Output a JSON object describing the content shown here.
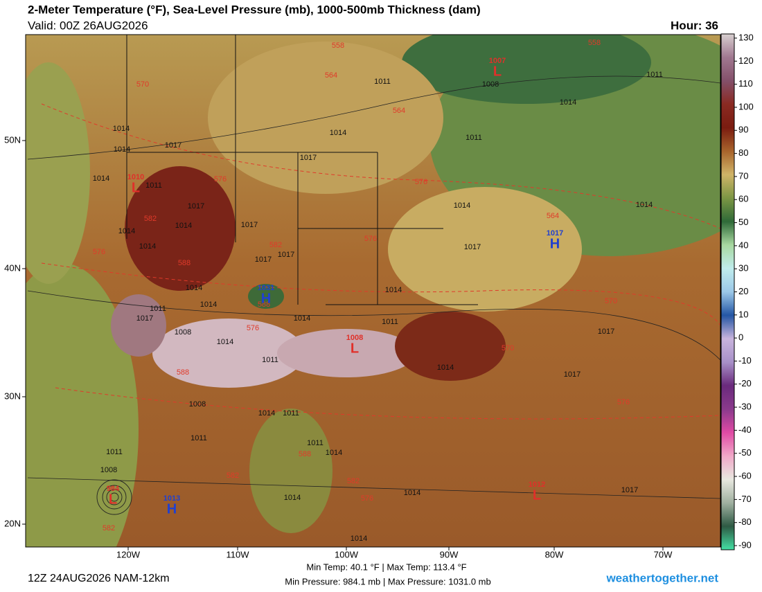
{
  "header": {
    "title": "2-Meter Temperature (°F), Sea-Level Pressure (mb), 1000-500mb Thickness (dam)",
    "valid": "Valid: 00Z 26AUG2026",
    "hour": "Hour: 36"
  },
  "colorbar": {
    "range": [
      -90,
      130
    ],
    "ticks": [
      130,
      120,
      110,
      100,
      90,
      80,
      70,
      60,
      50,
      40,
      30,
      20,
      10,
      0,
      -10,
      -20,
      -30,
      -40,
      -50,
      -60,
      -70,
      -80,
      -90
    ],
    "colors": [
      "#d8d0d0",
      "#a07890",
      "#84506a",
      "#8a2a22",
      "#7a1c10",
      "#a8642c",
      "#d0b468",
      "#7c9644",
      "#2f6a38",
      "#a8d8a0",
      "#c0ecec",
      "#9cc8e8",
      "#2456a4",
      "#c8b4dc",
      "#a890c8",
      "#6a2a7c",
      "#8a3a8c",
      "#e04aa4",
      "#f0a8c8",
      "#e8e8e0",
      "#a0b0a0",
      "#2e5a44",
      "#44e0a4"
    ]
  },
  "lat_labels": [
    "50N",
    "40N",
    "30N",
    "20N"
  ],
  "lon_labels": [
    "120W",
    "110W",
    "100W",
    "90W",
    "80W",
    "70W"
  ],
  "isobar_labels": [
    "1011",
    "1008",
    "1011",
    "1014",
    "1014",
    "1011",
    "1014",
    "1014",
    "1017",
    "1017",
    "1014",
    "1011",
    "1017",
    "1014",
    "1014",
    "1014",
    "1017",
    "1014",
    "1014",
    "1017",
    "1017",
    "1017",
    "1014",
    "1014",
    "1011",
    "1014",
    "1017",
    "1014",
    "1011",
    "1008",
    "1017",
    "1014",
    "1011",
    "1014",
    "1017",
    "1008",
    "1014",
    "1011",
    "1011",
    "1011",
    "1014",
    "1011",
    "1008",
    "1014",
    "1014",
    "1017",
    "1014"
  ],
  "thickness_labels": [
    "558",
    "558",
    "564",
    "564",
    "570",
    "576",
    "576",
    "582",
    "582",
    "576",
    "576",
    "588",
    "564",
    "588",
    "576",
    "570",
    "570",
    "576",
    "588",
    "588",
    "582",
    "582",
    "582",
    "576"
  ],
  "centers": [
    {
      "letter": "L",
      "pressure": "1007"
    },
    {
      "letter": "L",
      "pressure": "1010"
    },
    {
      "letter": "H",
      "pressure": "1017"
    },
    {
      "letter": "H",
      "pressure": "1031"
    },
    {
      "letter": "L",
      "pressure": "1008"
    },
    {
      "letter": "L",
      "pressure": "984"
    },
    {
      "letter": "H",
      "pressure": "1013"
    },
    {
      "letter": "L",
      "pressure": "1012"
    }
  ],
  "footer": {
    "run": "12Z 24AUG2026 NAM-12km",
    "min_max_temp": "Min Temp:  40.1 °F | Max Temp: 113.4 °F",
    "min_max_pressure": "Min Pressure: 984.1 mb | Max Pressure: 1031.0 mb",
    "site": "weathertogether.net"
  }
}
